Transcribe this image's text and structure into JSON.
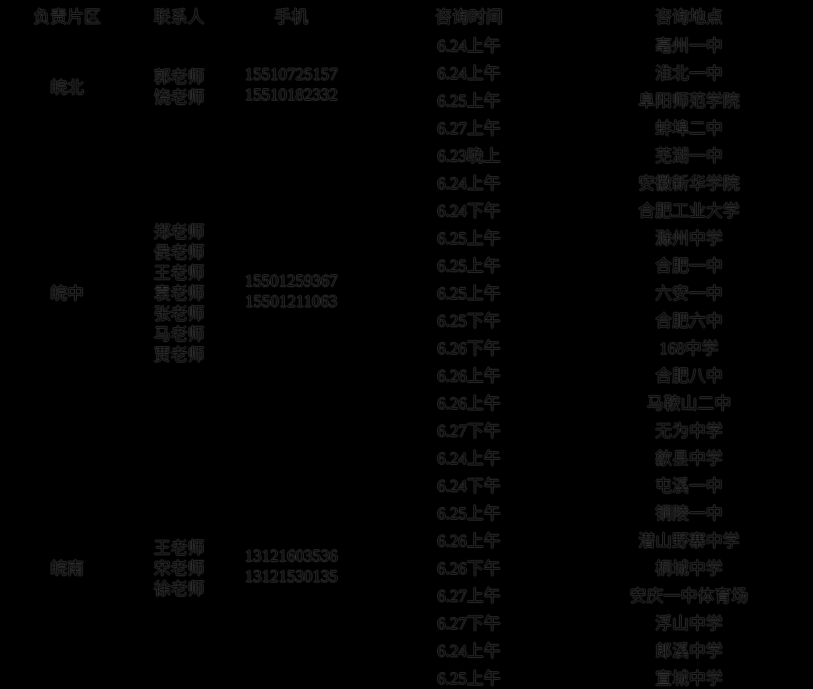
{
  "colors": {
    "background": "#000000",
    "text": "#050505",
    "text_halo": "#3a3a3a"
  },
  "table": {
    "headers": [
      "负责片区",
      "联系人",
      "手机",
      "咨询时间",
      "咨询地点"
    ],
    "sections": [
      {
        "region": "皖北",
        "contacts": [
          "郭老师",
          "饶老师"
        ],
        "phones": [
          "15510725157",
          "15510182332"
        ],
        "rows": [
          {
            "time": "6.24上午",
            "place": "亳州一中"
          },
          {
            "time": "6.24上午",
            "place": "淮北一中"
          },
          {
            "time": "6.25上午",
            "place": "阜阳师范学院"
          },
          {
            "time": "6.27上午",
            "place": "蚌埠二中"
          }
        ]
      },
      {
        "region": "皖中",
        "contacts": [
          "郑老师",
          "侯老师",
          "王老师",
          "袁老师",
          "张老师",
          "马老师",
          "贾老师"
        ],
        "phones": [
          "15501259367",
          "15501211063"
        ],
        "rows": [
          {
            "time": "6.23晚上",
            "place": "芜湖一中"
          },
          {
            "time": "6.24上午",
            "place": "安徽新华学院"
          },
          {
            "time": "6.24下午",
            "place": "合肥工业大学"
          },
          {
            "time": "6.25上午",
            "place": "滁州中学"
          },
          {
            "time": "6.25上午",
            "place": "合肥一中"
          },
          {
            "time": "6.25上午",
            "place": "六安一中"
          },
          {
            "time": "6.25下午",
            "place": "合肥六中"
          },
          {
            "time": "6.26下午",
            "place": "168中学"
          },
          {
            "time": "6.26上午",
            "place": "合肥八中"
          },
          {
            "time": "6.26上午",
            "place": "马鞍山二中"
          },
          {
            "time": "6.27下午",
            "place": "无为中学"
          }
        ]
      },
      {
        "region": "皖南",
        "contacts": [
          "王老师",
          "宋老师",
          "徐老师"
        ],
        "phones": [
          "13121603536",
          "13121530135"
        ],
        "rows": [
          {
            "time": "6.24上午",
            "place": "歙县中学"
          },
          {
            "time": "6.24下午",
            "place": "屯溪一中"
          },
          {
            "time": "6.25上午",
            "place": "铜陵一中"
          },
          {
            "time": "6.26上午",
            "place": "潜山野寨中学"
          },
          {
            "time": "6.26下午",
            "place": "桐城中学"
          },
          {
            "time": "6.27上午",
            "place": "安庆一中体育场"
          },
          {
            "time": "6.27下午",
            "place": "浮山中学"
          },
          {
            "time": "6.24上午",
            "place": "郎溪中学"
          },
          {
            "time": "6.25上午",
            "place": "宣城中学"
          }
        ]
      }
    ]
  }
}
